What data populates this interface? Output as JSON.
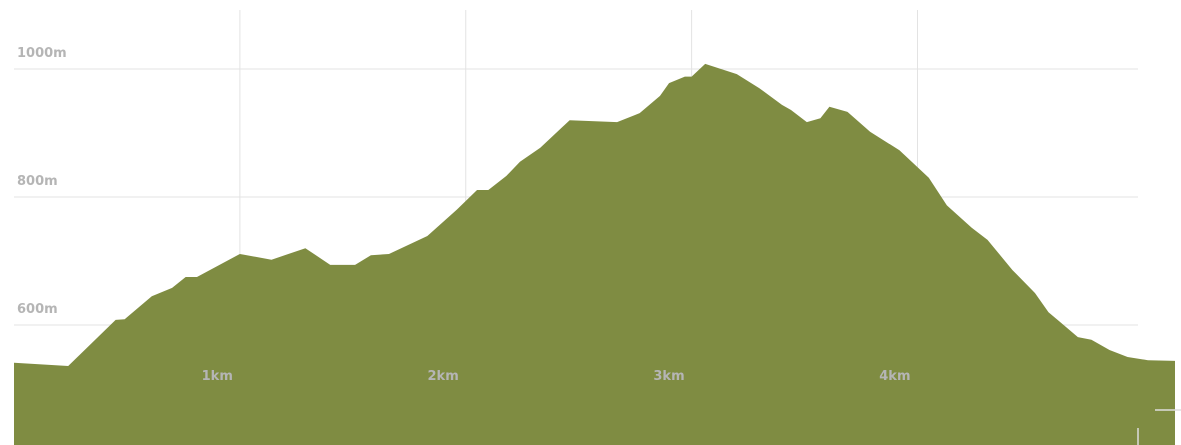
{
  "chart_data": {
    "type": "area",
    "color": "#7f8c42",
    "grid": true,
    "x": [
      0.0,
      0.24,
      0.45,
      0.49,
      0.61,
      0.7,
      0.76,
      0.81,
      1.0,
      1.14,
      1.29,
      1.4,
      1.51,
      1.58,
      1.66,
      1.83,
      1.96,
      2.05,
      2.1,
      2.18,
      2.24,
      2.33,
      2.46,
      2.67,
      2.77,
      2.86,
      2.9,
      2.97,
      3.0,
      3.06,
      3.2,
      3.3,
      3.4,
      3.44,
      3.51,
      3.57,
      3.61,
      3.69,
      3.79,
      3.92,
      4.05,
      4.13,
      4.24,
      4.31,
      4.42,
      4.52,
      4.58,
      4.63,
      4.71,
      4.77,
      4.85,
      4.93,
      5.02,
      5.14
    ],
    "values": [
      541,
      536,
      608,
      609,
      645,
      658,
      675,
      675,
      711,
      702,
      720,
      694,
      694,
      709,
      711,
      739,
      780,
      811,
      811,
      833,
      855,
      877,
      920,
      917,
      931,
      958,
      978,
      988,
      988,
      1008,
      992,
      970,
      944,
      936,
      917,
      923,
      941,
      933,
      902,
      873,
      830,
      787,
      752,
      733,
      686,
      650,
      620,
      605,
      581,
      577,
      561,
      550,
      545,
      544
    ],
    "xlim": [
      0,
      5.14
    ],
    "ylim": [
      412.5,
      1107.8
    ],
    "xticks": [
      {
        "value": 1,
        "label": "1km"
      },
      {
        "value": 2,
        "label": "2km"
      },
      {
        "value": 3,
        "label": "3km"
      },
      {
        "value": 4,
        "label": "4km"
      }
    ],
    "yticks": [
      {
        "value": 600,
        "label": "600m"
      },
      {
        "value": 800,
        "label": "800m"
      },
      {
        "value": 1000,
        "label": "1000m"
      }
    ]
  }
}
